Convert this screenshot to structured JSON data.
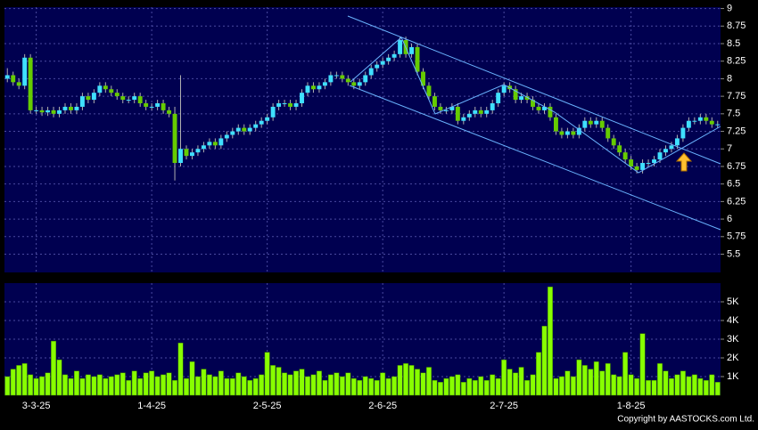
{
  "chart_data": [
    {
      "type": "candlestick",
      "categories": [
        null,
        null,
        null,
        null,
        null,
        "3-3-25",
        null,
        null,
        null,
        null,
        null,
        null,
        null,
        null,
        null,
        null,
        null,
        null,
        null,
        null,
        null,
        null,
        null,
        null,
        null,
        "1-4-25",
        null,
        null,
        null,
        null,
        null,
        null,
        null,
        null,
        null,
        null,
        null,
        null,
        null,
        null,
        null,
        null,
        null,
        null,
        null,
        "2-5-25",
        null,
        null,
        null,
        null,
        null,
        null,
        null,
        null,
        null,
        null,
        null,
        null,
        null,
        null,
        null,
        null,
        null,
        null,
        null,
        "2-6-25",
        null,
        null,
        null,
        null,
        null,
        null,
        null,
        null,
        null,
        null,
        null,
        null,
        null,
        null,
        null,
        null,
        null,
        null,
        null,
        null,
        "2-7-25",
        null,
        null,
        null,
        null,
        null,
        null,
        null,
        null,
        null,
        null,
        null,
        null,
        null,
        null,
        null,
        null,
        null,
        null,
        null,
        null,
        null,
        "1-8-25",
        null,
        null,
        null,
        null,
        null,
        null,
        null,
        null,
        null,
        null,
        null,
        null,
        null,
        null,
        null
      ],
      "open": [
        8.0,
        8.05,
        7.95,
        7.9,
        8.3,
        7.55,
        7.55,
        7.52,
        7.55,
        7.5,
        7.55,
        7.6,
        7.55,
        7.6,
        7.75,
        7.7,
        7.8,
        7.9,
        7.85,
        7.8,
        7.75,
        7.7,
        7.7,
        7.75,
        7.65,
        7.6,
        7.6,
        7.65,
        7.55,
        7.5,
        6.8,
        7.0,
        6.9,
        6.95,
        7.0,
        7.05,
        7.1,
        7.05,
        7.15,
        7.2,
        7.25,
        7.3,
        7.25,
        7.3,
        7.35,
        7.4,
        7.45,
        7.6,
        7.65,
        7.65,
        7.6,
        7.65,
        7.8,
        7.9,
        7.85,
        7.9,
        7.95,
        8.05,
        8.05,
        8.0,
        7.95,
        7.9,
        7.95,
        8.05,
        8.15,
        8.2,
        8.25,
        8.3,
        8.35,
        8.55,
        8.35,
        8.45,
        8.1,
        7.9,
        7.75,
        7.6,
        7.55,
        7.55,
        7.6,
        7.4,
        7.45,
        7.5,
        7.55,
        7.5,
        7.55,
        7.65,
        7.8,
        7.9,
        7.85,
        7.7,
        7.75,
        7.7,
        7.6,
        7.55,
        7.6,
        7.45,
        7.25,
        7.2,
        7.25,
        7.2,
        7.3,
        7.4,
        7.35,
        7.4,
        7.3,
        7.15,
        7.05,
        6.95,
        6.85,
        6.75,
        6.7,
        6.8,
        6.8,
        6.85,
        6.95,
        7.0,
        7.05,
        7.15,
        7.3,
        7.4,
        7.4,
        7.45,
        7.4,
        7.35
      ],
      "high": [
        8.15,
        8.1,
        8.0,
        8.35,
        8.35,
        7.6,
        7.6,
        7.6,
        7.6,
        7.6,
        7.65,
        7.65,
        7.65,
        7.8,
        7.8,
        7.85,
        7.95,
        7.95,
        7.9,
        7.85,
        7.8,
        7.75,
        7.8,
        7.8,
        7.7,
        7.65,
        7.7,
        7.7,
        7.6,
        7.6,
        8.05,
        7.05,
        7.0,
        7.05,
        7.1,
        7.15,
        7.15,
        7.2,
        7.25,
        7.3,
        7.35,
        7.35,
        7.35,
        7.4,
        7.45,
        7.5,
        7.65,
        7.7,
        7.7,
        7.7,
        7.7,
        7.85,
        7.95,
        7.95,
        7.95,
        8.0,
        8.1,
        8.1,
        8.1,
        8.05,
        8.0,
        8.0,
        8.1,
        8.2,
        8.25,
        8.3,
        8.35,
        8.4,
        8.6,
        8.6,
        8.5,
        8.5,
        8.15,
        7.95,
        7.8,
        7.65,
        7.6,
        7.65,
        7.65,
        7.5,
        7.55,
        7.6,
        7.6,
        7.6,
        7.7,
        7.85,
        7.95,
        7.95,
        7.9,
        7.8,
        7.8,
        7.75,
        7.65,
        7.65,
        7.65,
        7.5,
        7.3,
        7.3,
        7.3,
        7.35,
        7.45,
        7.45,
        7.45,
        7.45,
        7.35,
        7.2,
        7.1,
        7.0,
        6.9,
        6.8,
        6.85,
        6.85,
        6.9,
        7.0,
        7.05,
        7.1,
        7.2,
        7.35,
        7.45,
        7.45,
        7.5,
        7.5,
        7.45,
        7.4
      ],
      "low": [
        7.95,
        7.9,
        7.85,
        7.85,
        7.5,
        7.5,
        7.47,
        7.47,
        7.45,
        7.45,
        7.5,
        7.5,
        7.5,
        7.55,
        7.65,
        7.65,
        7.75,
        7.8,
        7.75,
        7.7,
        7.65,
        7.65,
        7.65,
        7.6,
        7.55,
        7.55,
        7.55,
        7.5,
        7.45,
        6.55,
        6.75,
        6.85,
        6.85,
        6.9,
        6.95,
        7.0,
        7.0,
        7.0,
        7.1,
        7.15,
        7.2,
        7.2,
        7.2,
        7.25,
        7.3,
        7.35,
        7.4,
        7.55,
        7.6,
        7.55,
        7.55,
        7.6,
        7.75,
        7.8,
        7.8,
        7.85,
        7.9,
        8.0,
        7.95,
        7.9,
        7.85,
        7.85,
        7.9,
        8.0,
        8.1,
        8.15,
        8.2,
        8.25,
        8.3,
        8.3,
        8.3,
        8.05,
        7.85,
        7.7,
        7.55,
        7.5,
        7.5,
        7.5,
        7.35,
        7.35,
        7.4,
        7.45,
        7.45,
        7.45,
        7.5,
        7.6,
        7.75,
        7.8,
        7.65,
        7.65,
        7.65,
        7.55,
        7.5,
        7.5,
        7.4,
        7.2,
        7.15,
        7.15,
        7.15,
        7.15,
        7.25,
        7.3,
        7.3,
        7.25,
        7.1,
        7.0,
        6.9,
        6.8,
        6.7,
        6.65,
        6.65,
        6.75,
        6.75,
        6.8,
        6.9,
        6.95,
        7.0,
        7.1,
        7.25,
        7.35,
        7.35,
        7.35,
        7.3,
        7.3
      ],
      "close": [
        8.05,
        7.95,
        7.9,
        8.3,
        7.55,
        7.55,
        7.52,
        7.55,
        7.5,
        7.55,
        7.6,
        7.55,
        7.6,
        7.75,
        7.7,
        7.8,
        7.9,
        7.85,
        7.8,
        7.75,
        7.7,
        7.7,
        7.75,
        7.65,
        7.6,
        7.6,
        7.65,
        7.55,
        7.5,
        6.8,
        7.0,
        6.9,
        6.95,
        7.0,
        7.05,
        7.1,
        7.05,
        7.15,
        7.2,
        7.25,
        7.3,
        7.25,
        7.3,
        7.35,
        7.4,
        7.45,
        7.6,
        7.65,
        7.65,
        7.6,
        7.65,
        7.8,
        7.9,
        7.85,
        7.9,
        7.95,
        8.05,
        8.05,
        8.0,
        7.95,
        7.9,
        7.95,
        8.05,
        8.15,
        8.2,
        8.25,
        8.3,
        8.35,
        8.55,
        8.35,
        8.45,
        8.1,
        7.9,
        7.75,
        7.6,
        7.55,
        7.55,
        7.6,
        7.4,
        7.45,
        7.5,
        7.55,
        7.5,
        7.55,
        7.65,
        7.8,
        7.9,
        7.85,
        7.7,
        7.75,
        7.7,
        7.6,
        7.55,
        7.6,
        7.45,
        7.25,
        7.2,
        7.25,
        7.2,
        7.3,
        7.4,
        7.35,
        7.4,
        7.3,
        7.15,
        7.05,
        6.95,
        6.85,
        6.75,
        6.7,
        6.8,
        6.8,
        6.85,
        6.95,
        7.0,
        7.05,
        7.15,
        7.3,
        7.4,
        7.4,
        7.45,
        7.4,
        7.35,
        7.35
      ],
      "up_color": "#3fe0ff",
      "down_color": "#66cc00",
      "ylim": [
        5.24,
        9.02
      ],
      "yticks": [
        5.5,
        5.75,
        6,
        6.25,
        6.5,
        6.75,
        7,
        7.25,
        7.5,
        7.75,
        8,
        8.25,
        8.5,
        8.75,
        9
      ],
      "grid": true,
      "source": "Copyright by AASTOCKS.com Ltd."
    },
    {
      "type": "bar",
      "values": [
        1000,
        1400,
        1600,
        1700,
        1100,
        900,
        1000,
        1200,
        2900,
        1900,
        1100,
        900,
        1300,
        900,
        1100,
        1000,
        1100,
        900,
        1000,
        1100,
        1200,
        800,
        1300,
        900,
        1200,
        1300,
        1000,
        1100,
        1200,
        800,
        2800,
        900,
        1800,
        1000,
        1400,
        1100,
        1000,
        1300,
        900,
        900,
        1200,
        1000,
        800,
        900,
        1100,
        2300,
        1600,
        1500,
        1200,
        1100,
        1300,
        1400,
        1000,
        1100,
        1300,
        800,
        1100,
        1200,
        1000,
        1200,
        900,
        800,
        1000,
        900,
        800,
        1200,
        900,
        1000,
        1600,
        1700,
        1600,
        1400,
        1200,
        1500,
        800,
        700,
        900,
        1000,
        1100,
        700,
        900,
        800,
        1000,
        800,
        1100,
        900,
        1900,
        1400,
        1200,
        1500,
        800,
        1100,
        2300,
        3700,
        5800,
        900,
        1000,
        1300,
        1000,
        1900,
        1600,
        1400,
        1800,
        1300,
        1700,
        1100,
        1000,
        2300,
        1100,
        900,
        3300,
        800,
        800,
        1700,
        1300,
        900,
        1100,
        1300,
        1000,
        1100,
        900,
        800,
        1100,
        700
      ],
      "color": "#88ff00",
      "ylim": [
        0,
        6000
      ],
      "yticks": [
        {
          "value": 1000,
          "label": "1K"
        },
        {
          "value": 2000,
          "label": "2K"
        },
        {
          "value": 3000,
          "label": "3K"
        },
        {
          "value": 4000,
          "label": "4K"
        },
        {
          "value": 5000,
          "label": "5K"
        }
      ],
      "grid": true
    }
  ]
}
